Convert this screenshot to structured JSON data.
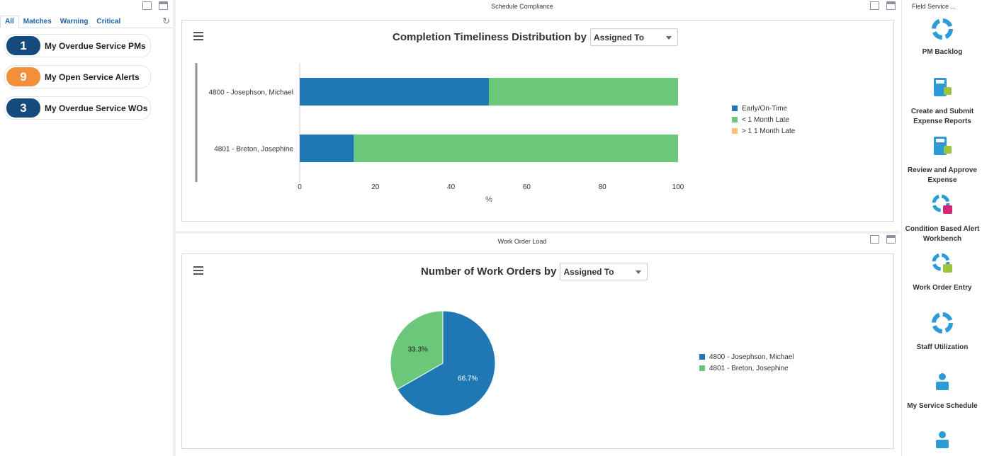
{
  "watchlist": {
    "tabs": [
      "All",
      "Matches",
      "Warning",
      "Critical"
    ],
    "items": [
      {
        "count": "1",
        "label": "My Overdue Service PMs",
        "color": "#174a7c"
      },
      {
        "count": "9",
        "label": "My Open Service Alerts",
        "color": "#f28f3b"
      },
      {
        "count": "3",
        "label": "My Overdue Service WOs",
        "color": "#174a7c"
      }
    ]
  },
  "schedule": {
    "pane_title": "Schedule Compliance",
    "title_prefix": "Completion Timeliness Distribution by",
    "dropdown_value": "Assigned To"
  },
  "workorders": {
    "pane_title": "Work Order Load",
    "title_prefix": "Number of Work Orders by",
    "dropdown_value": "Assigned To"
  },
  "chart_data": [
    {
      "type": "bar",
      "orientation": "horizontal",
      "stacked": true,
      "title": "Completion Timeliness Distribution by",
      "categories": [
        "4800 - Josephson, Michael",
        "4801 - Breton, Josephine"
      ],
      "series": [
        {
          "name": "Early/On-Time",
          "values": [
            50,
            14.3
          ],
          "color": "#1f77b4"
        },
        {
          "name": "< 1 Month Late",
          "values": [
            50,
            85.7
          ],
          "color": "#6bc77a"
        },
        {
          "name": "> 1 1 Month Late",
          "values": [
            0,
            0
          ],
          "color": "#f5c26b"
        }
      ],
      "xlabel": "%",
      "xlim": [
        0,
        100
      ],
      "xticks": [
        "0",
        "20",
        "40",
        "60",
        "80",
        "100"
      ],
      "legend": "right"
    },
    {
      "type": "pie",
      "title": "Number of Work Orders by",
      "labels": [
        "4800 - Josephson, Michael",
        "4801 - Breton, Josephine"
      ],
      "values": [
        66.7,
        33.3
      ],
      "data_labels": [
        "66.7%",
        "33.3%"
      ],
      "colors": [
        "#1f77b4",
        "#6bc77a"
      ],
      "legend": "right"
    }
  ],
  "springboard": {
    "title": "Field Service ...",
    "tiles": [
      {
        "label": "PM Backlog",
        "icon": "cycle-icon"
      },
      {
        "label": "Create and Submit Expense Reports",
        "icon": "calculator-icon"
      },
      {
        "label": "Review and Approve Expense",
        "icon": "calculator-icon"
      },
      {
        "label": "Condition Based Alert Workbench",
        "icon": "cycle-alert-icon"
      },
      {
        "label": "Work Order Entry",
        "icon": "cycle-search-icon"
      },
      {
        "label": "Staff Utilization",
        "icon": "cycle-icon"
      },
      {
        "label": "My Service Schedule",
        "icon": "person-icon"
      },
      {
        "label": "",
        "icon": "person-icon"
      }
    ]
  }
}
